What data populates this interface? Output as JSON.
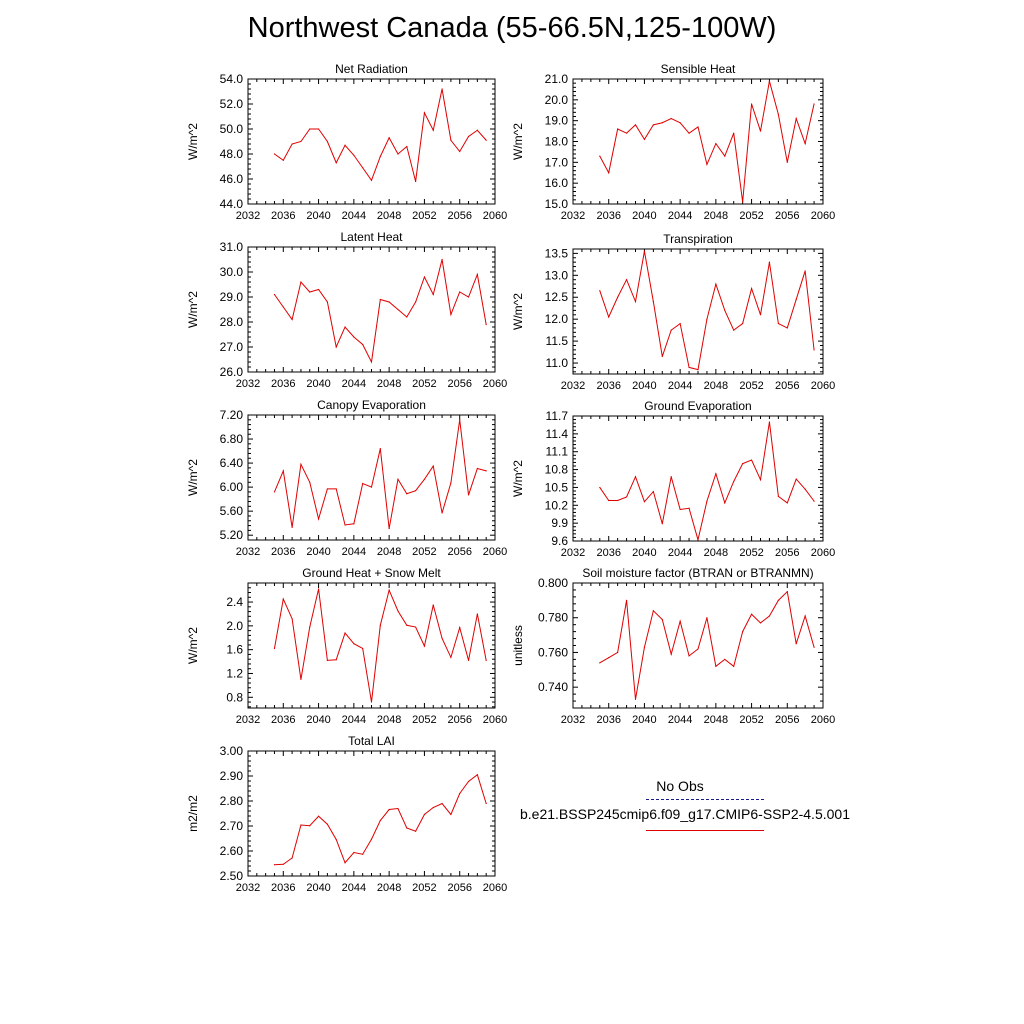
{
  "page_title": "Northwest Canada (55-66.5N,125-100W)",
  "legend": {
    "obs_label": "No Obs",
    "model_label": "b.e21.BSSP245cmip6.f09_g17.CMIP6-SSP2-4.5.001",
    "obs_color": "#1a1a8c",
    "model_color": "#e00000"
  },
  "chart_data": [
    {
      "type": "line",
      "title": "Net Radiation",
      "ylabel": "W/m^2",
      "xlim": [
        2032,
        2060
      ],
      "ylim": [
        44,
        54
      ],
      "xticks": [
        "2032",
        "2036",
        "2040",
        "2044",
        "2048",
        "2052",
        "2056",
        "2060"
      ],
      "yticks": [
        "44.0",
        "46.0",
        "48.0",
        "50.0",
        "52.0",
        "54.0"
      ],
      "series": [
        {
          "x": [
            2035,
            2036,
            2037,
            2038,
            2039,
            2040,
            2041,
            2042,
            2043,
            2044,
            2045,
            2046,
            2047,
            2048,
            2049,
            2050,
            2051,
            2052,
            2053,
            2054,
            2055,
            2056,
            2057,
            2058,
            2059
          ],
          "values": [
            48.0,
            47.5,
            48.8,
            49.0,
            50.0,
            50.0,
            49.0,
            47.3,
            48.7,
            47.9,
            46.9,
            45.9,
            47.8,
            49.3,
            48.0,
            48.6,
            45.8,
            51.3,
            49.9,
            53.2,
            49.1,
            48.2,
            49.4,
            49.9,
            49.1
          ]
        }
      ]
    },
    {
      "type": "line",
      "title": "Sensible Heat",
      "ylabel": "W/m^2",
      "xlim": [
        2032,
        2060
      ],
      "ylim": [
        15,
        21
      ],
      "xticks": [
        "2032",
        "2036",
        "2040",
        "2044",
        "2048",
        "2052",
        "2056",
        "2060"
      ],
      "yticks": [
        "15.0",
        "16.0",
        "17.0",
        "18.0",
        "19.0",
        "20.0",
        "21.0"
      ],
      "series": [
        {
          "x": [
            2035,
            2036,
            2037,
            2038,
            2039,
            2040,
            2041,
            2042,
            2043,
            2044,
            2045,
            2046,
            2047,
            2048,
            2049,
            2050,
            2051,
            2052,
            2053,
            2054,
            2055,
            2056,
            2057,
            2058,
            2059
          ],
          "values": [
            17.3,
            16.5,
            18.6,
            18.4,
            18.8,
            18.1,
            18.8,
            18.9,
            19.1,
            18.9,
            18.4,
            18.7,
            16.9,
            17.9,
            17.3,
            18.4,
            15.1,
            19.8,
            18.5,
            20.9,
            19.3,
            17.0,
            19.1,
            17.9,
            19.8
          ]
        }
      ]
    },
    {
      "type": "line",
      "title": "Latent Heat",
      "ylabel": "W/m^2",
      "xlim": [
        2032,
        2060
      ],
      "ylim": [
        26,
        31
      ],
      "xticks": [
        "2032",
        "2036",
        "2040",
        "2044",
        "2048",
        "2052",
        "2056",
        "2060"
      ],
      "yticks": [
        "26.0",
        "27.0",
        "28.0",
        "29.0",
        "30.0",
        "31.0"
      ],
      "series": [
        {
          "x": [
            2035,
            2036,
            2037,
            2038,
            2039,
            2040,
            2041,
            2042,
            2043,
            2044,
            2045,
            2046,
            2047,
            2048,
            2049,
            2050,
            2051,
            2052,
            2053,
            2054,
            2055,
            2056,
            2057,
            2058,
            2059
          ],
          "values": [
            29.1,
            28.6,
            28.1,
            29.6,
            29.2,
            29.3,
            28.8,
            27.0,
            27.8,
            27.4,
            27.1,
            26.4,
            28.9,
            28.8,
            28.5,
            28.2,
            28.8,
            29.8,
            29.1,
            30.5,
            28.3,
            29.2,
            29.0,
            29.9,
            27.9
          ]
        }
      ]
    },
    {
      "type": "line",
      "title": "Transpiration",
      "ylabel": "W/m^2",
      "xlim": [
        2032,
        2060
      ],
      "ylim": [
        10.75,
        13.6
      ],
      "xticks": [
        "2032",
        "2036",
        "2040",
        "2044",
        "2048",
        "2052",
        "2056",
        "2060"
      ],
      "yticks": [
        "11.0",
        "11.5",
        "12.0",
        "12.5",
        "13.0",
        "13.5"
      ],
      "series": [
        {
          "x": [
            2035,
            2036,
            2037,
            2038,
            2039,
            2040,
            2041,
            2042,
            2043,
            2044,
            2045,
            2046,
            2047,
            2048,
            2049,
            2050,
            2051,
            2052,
            2053,
            2054,
            2055,
            2056,
            2057,
            2058,
            2059
          ],
          "values": [
            12.65,
            12.05,
            12.5,
            12.9,
            12.4,
            13.55,
            12.4,
            11.15,
            11.75,
            11.9,
            10.9,
            10.85,
            12.0,
            12.8,
            12.2,
            11.75,
            11.9,
            12.7,
            12.1,
            13.3,
            11.9,
            11.8,
            12.45,
            13.1,
            11.3
          ]
        }
      ]
    },
    {
      "type": "line",
      "title": "Canopy Evaporation",
      "ylabel": "W/m^2",
      "xlim": [
        2032,
        2060
      ],
      "ylim": [
        5.12,
        7.2
      ],
      "xticks": [
        "2032",
        "2036",
        "2040",
        "2044",
        "2048",
        "2052",
        "2056",
        "2060"
      ],
      "yticks": [
        "5.20",
        "5.60",
        "6.00",
        "6.40",
        "6.80",
        "7.20"
      ],
      "series": [
        {
          "x": [
            2035,
            2036,
            2037,
            2038,
            2039,
            2040,
            2041,
            2042,
            2043,
            2044,
            2045,
            2046,
            2047,
            2048,
            2049,
            2050,
            2051,
            2052,
            2053,
            2054,
            2055,
            2056,
            2057,
            2058,
            2059
          ],
          "values": [
            5.92,
            6.27,
            5.33,
            6.38,
            6.08,
            5.47,
            5.97,
            5.97,
            5.37,
            5.39,
            6.06,
            6.0,
            6.64,
            5.31,
            6.13,
            5.89,
            5.94,
            6.13,
            6.35,
            5.57,
            6.07,
            7.12,
            5.87,
            6.31,
            6.27
          ]
        }
      ]
    },
    {
      "type": "line",
      "title": "Ground Evaporation",
      "ylabel": "W/m^2",
      "xlim": [
        2032,
        2060
      ],
      "ylim": [
        9.6,
        11.7
      ],
      "xticks": [
        "2032",
        "2036",
        "2040",
        "2044",
        "2048",
        "2052",
        "2056",
        "2060"
      ],
      "yticks": [
        "9.6",
        "9.9",
        "10.2",
        "10.5",
        "10.8",
        "11.1",
        "11.4",
        "11.7"
      ],
      "series": [
        {
          "x": [
            2035,
            2036,
            2037,
            2038,
            2039,
            2040,
            2041,
            2042,
            2043,
            2044,
            2045,
            2046,
            2047,
            2048,
            2049,
            2050,
            2051,
            2052,
            2053,
            2054,
            2055,
            2056,
            2057,
            2058,
            2059
          ],
          "values": [
            10.5,
            10.28,
            10.28,
            10.34,
            10.68,
            10.26,
            10.43,
            9.89,
            10.68,
            10.13,
            10.15,
            9.62,
            10.27,
            10.73,
            10.24,
            10.6,
            10.9,
            10.96,
            10.63,
            11.6,
            10.35,
            10.24,
            10.64,
            10.47,
            10.27
          ]
        }
      ]
    },
    {
      "type": "line",
      "title": "Ground Heat + Snow Melt",
      "ylabel": "W/m^2",
      "xlim": [
        2032,
        2060
      ],
      "ylim": [
        0.62,
        2.72
      ],
      "xticks": [
        "2032",
        "2036",
        "2040",
        "2044",
        "2048",
        "2052",
        "2056",
        "2060"
      ],
      "yticks": [
        "0.8",
        "1.2",
        "1.6",
        "2.0",
        "2.4"
      ],
      "series": [
        {
          "x": [
            2035,
            2036,
            2037,
            2038,
            2039,
            2040,
            2041,
            2042,
            2043,
            2044,
            2045,
            2046,
            2047,
            2048,
            2049,
            2050,
            2051,
            2052,
            2053,
            2054,
            2055,
            2056,
            2057,
            2058,
            2059
          ],
          "values": [
            1.62,
            2.45,
            2.12,
            1.1,
            1.98,
            2.62,
            1.42,
            1.43,
            1.88,
            1.7,
            1.62,
            0.72,
            2.01,
            2.6,
            2.25,
            2.01,
            1.98,
            1.66,
            2.35,
            1.79,
            1.47,
            1.97,
            1.42,
            2.2,
            1.42
          ]
        }
      ]
    },
    {
      "type": "line",
      "title": "Soil moisture factor (BTRAN or BTRANMN)",
      "ylabel": "unitless",
      "xlim": [
        2032,
        2060
      ],
      "ylim": [
        0.728,
        0.8
      ],
      "xticks": [
        "2032",
        "2036",
        "2040",
        "2044",
        "2048",
        "2052",
        "2056",
        "2060"
      ],
      "yticks": [
        "0.740",
        "0.760",
        "0.780",
        "0.800"
      ],
      "series": [
        {
          "x": [
            2035,
            2036,
            2037,
            2038,
            2039,
            2040,
            2041,
            2042,
            2043,
            2044,
            2045,
            2046,
            2047,
            2048,
            2049,
            2050,
            2051,
            2052,
            2053,
            2054,
            2055,
            2056,
            2057,
            2058,
            2059
          ],
          "values": [
            0.754,
            0.757,
            0.76,
            0.79,
            0.733,
            0.763,
            0.784,
            0.779,
            0.759,
            0.778,
            0.758,
            0.762,
            0.78,
            0.752,
            0.756,
            0.752,
            0.772,
            0.782,
            0.777,
            0.781,
            0.79,
            0.795,
            0.765,
            0.781,
            0.763
          ]
        }
      ]
    },
    {
      "type": "line",
      "title": "Total LAI",
      "ylabel": "m2/m2",
      "xlim": [
        2032,
        2060
      ],
      "ylim": [
        2.5,
        3.0
      ],
      "xticks": [
        "2032",
        "2036",
        "2040",
        "2044",
        "2048",
        "2052",
        "2056",
        "2060"
      ],
      "yticks": [
        "2.50",
        "2.60",
        "2.70",
        "2.80",
        "2.90",
        "3.00"
      ],
      "series": [
        {
          "x": [
            2035,
            2036,
            2037,
            2038,
            2039,
            2040,
            2041,
            2042,
            2043,
            2044,
            2045,
            2046,
            2047,
            2048,
            2049,
            2050,
            2051,
            2052,
            2053,
            2054,
            2055,
            2056,
            2057,
            2058,
            2059
          ],
          "values": [
            2.545,
            2.547,
            2.572,
            2.704,
            2.701,
            2.739,
            2.707,
            2.646,
            2.553,
            2.594,
            2.587,
            2.647,
            2.722,
            2.766,
            2.77,
            2.692,
            2.679,
            2.746,
            2.774,
            2.79,
            2.746,
            2.83,
            2.878,
            2.905,
            2.79
          ]
        }
      ]
    }
  ]
}
